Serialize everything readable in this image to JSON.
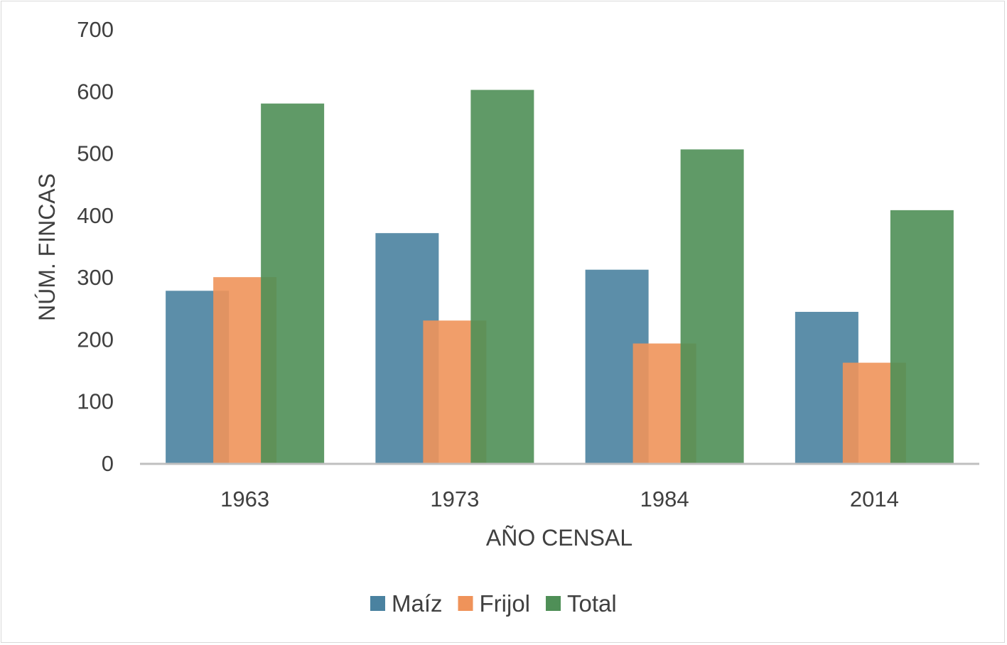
{
  "chart_data": {
    "type": "bar",
    "categories": [
      "1963",
      "1973",
      "1984",
      "2014"
    ],
    "series": [
      {
        "name": "Maíz",
        "values": [
          278,
          371,
          312,
          244
        ],
        "color": "#4a82a0"
      },
      {
        "name": "Frijol",
        "values": [
          300,
          230,
          193,
          162
        ],
        "color": "#ef935a"
      },
      {
        "name": "Total",
        "values": [
          580,
          602,
          506,
          408
        ],
        "color": "#4f8f57"
      }
    ],
    "bar_opacity": 0.9,
    "title": "",
    "xlabel": "AÑO CENSAL",
    "ylabel": "NÚM. FINCAS",
    "ylim": [
      0,
      700
    ],
    "yticks": [
      "0",
      "100",
      "200",
      "300",
      "400",
      "500",
      "600",
      "700"
    ],
    "grid": false,
    "legend_position": "bottom"
  }
}
